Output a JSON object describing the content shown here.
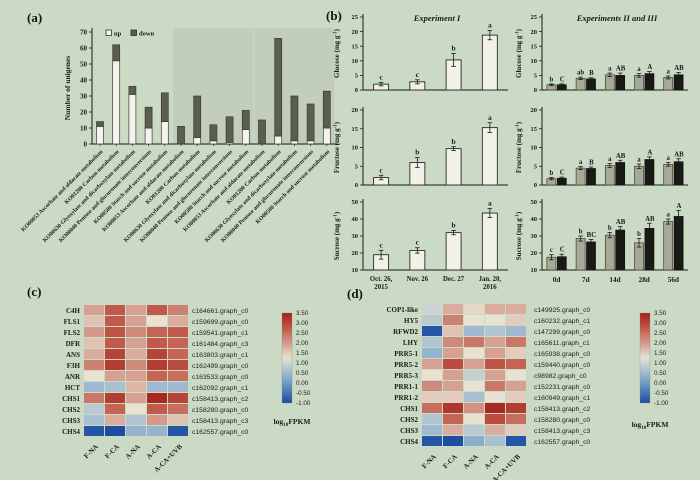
{
  "figure": {
    "panel_labels": {
      "a": "(a)",
      "b": "(b)",
      "c": "(c)",
      "d": "(d)"
    }
  },
  "colors": {
    "background": "#cbdac4",
    "shaded_region": "#c2ceb9",
    "up_bar": "#f4f4ec",
    "down_bar": "#5a5f4c",
    "open_bar": "#f1f1e8",
    "gray_bar": "#a7a997",
    "black_bar": "#191916",
    "heatmap_max_red": "#a2231b",
    "heatmap_mid": "#e7e2d2",
    "heatmap_min_blue": "#1d4da1",
    "text": "#1a1a1a"
  },
  "chart_data": {
    "panel_a": {
      "type": "bar",
      "stacked": true,
      "ylabel": "Number of unigenes",
      "ylim": [
        0,
        70
      ],
      "yticks": [
        0,
        10,
        20,
        30,
        40,
        50,
        60,
        70
      ],
      "legend": [
        "up",
        "down"
      ],
      "categories": [
        "KO00053 Ascorbate and aldarate metabolism",
        "KO01200 Carbon metabolism",
        "KO00630 Glyoxylate and dicarboxylate metabolism",
        "KO00040 Pentose and glucuronate interconversions",
        "KO00500 Starch and sucrose metabolism",
        "KO00053 Ascorbate and aldarate metabolism",
        "KO01200 Carbon metabolism",
        "KO00630 Glyoxylate and dicarboxylate metabolism",
        "KO00040 Pentose and glucuronate interconversions",
        "KO00500 Starch and sucrose metabolism",
        "KO00053 Ascorbate and aldarate metabolism",
        "KO01200 Carbon metabolism",
        "KO00630 Glyoxylate and dicarboxylate metabolism",
        "KO00040 Pentose and glucuronate interconversions",
        "KO00500 Starch and sucrose metabolism"
      ],
      "series": [
        {
          "name": "up",
          "values": [
            11,
            52,
            31,
            10,
            14,
            0,
            4,
            2,
            1,
            9,
            0,
            5,
            2,
            2,
            10
          ]
        },
        {
          "name": "down",
          "values": [
            3,
            10,
            5,
            13,
            18,
            11,
            26,
            10,
            16,
            12,
            15,
            61,
            28,
            23,
            23
          ]
        }
      ],
      "shaded_category_ranges": [
        [
          6,
          10
        ],
        [
          11,
          15
        ]
      ]
    },
    "experiment1": {
      "title": "Experiment I",
      "categories": [
        [
          "Oct. 26,",
          "2015"
        ],
        [
          "Nov. 26"
        ],
        [
          "Dec. 27"
        ],
        [
          "Jan. 20,",
          "2016"
        ]
      ],
      "charts": [
        {
          "type": "bar",
          "ylabel": "Glucose (mg g-1)",
          "ylim": [
            0,
            25
          ],
          "yticks": [
            0,
            5,
            10,
            15,
            20,
            25
          ],
          "values": [
            2.0,
            2.8,
            10.3,
            18.8
          ],
          "errors": [
            0.6,
            0.7,
            2.2,
            1.6
          ],
          "letters": [
            "c",
            "c",
            "b",
            "a"
          ]
        },
        {
          "type": "bar",
          "ylabel": "Fructose (mg g-1)",
          "ylim": [
            0,
            20
          ],
          "yticks": [
            0,
            5,
            10,
            15,
            20
          ],
          "values": [
            2.0,
            6.0,
            9.7,
            15.3
          ],
          "errors": [
            0.6,
            1.3,
            0.5,
            1.3
          ],
          "letters": [
            "c",
            "b",
            "b",
            "a"
          ]
        },
        {
          "type": "bar",
          "ylabel": "Sucrose (mg g-1)",
          "ylim": [
            10,
            50
          ],
          "yticks": [
            10,
            20,
            30,
            40,
            50
          ],
          "values": [
            19.0,
            21.5,
            32.0,
            43.5
          ],
          "errors": [
            2.6,
            1.6,
            1.3,
            2.6
          ],
          "letters": [
            "c",
            "c",
            "b",
            "a"
          ]
        }
      ]
    },
    "experiments_2_3": {
      "title": "Experiments II and III",
      "categories": [
        "0d",
        "7d",
        "14d",
        "28d",
        "56d"
      ],
      "charts": [
        {
          "type": "bar",
          "ylabel": "Glucose (mg g-1)",
          "ylim": [
            0,
            25
          ],
          "yticks": [
            0,
            5,
            10,
            15,
            20,
            25
          ],
          "series": [
            {
              "name": "gray",
              "values": [
                1.8,
                4.0,
                5.2,
                5.0,
                4.3
              ],
              "errors": [
                0.3,
                0.4,
                0.6,
                0.6,
                0.5
              ],
              "letters": [
                "b",
                "ab",
                "a",
                "a",
                "a"
              ]
            },
            {
              "name": "black",
              "values": [
                1.8,
                3.8,
                5.0,
                5.6,
                5.2
              ],
              "errors": [
                0.3,
                0.4,
                0.8,
                0.7,
                0.8
              ],
              "letters": [
                "C",
                "B",
                "AB",
                "A",
                "AB"
              ]
            }
          ]
        },
        {
          "type": "bar",
          "ylabel": "Fructose (mg g-1)",
          "ylim": [
            0,
            20
          ],
          "yticks": [
            0,
            5,
            10,
            15,
            20
          ],
          "series": [
            {
              "name": "gray",
              "values": [
                1.7,
                4.5,
                5.2,
                5.0,
                5.5
              ],
              "errors": [
                0.3,
                0.4,
                0.5,
                0.6,
                0.5
              ],
              "letters": [
                "b",
                "a",
                "a",
                "a",
                "a"
              ]
            },
            {
              "name": "black",
              "values": [
                1.8,
                4.4,
                6.0,
                6.8,
                6.2
              ],
              "errors": [
                0.3,
                0.4,
                0.6,
                0.7,
                0.8
              ],
              "letters": [
                "C",
                "B",
                "AB",
                "A",
                "AB"
              ]
            }
          ]
        },
        {
          "type": "bar",
          "ylabel": "Sucrose (mg g-1)",
          "ylim": [
            10,
            50
          ],
          "yticks": [
            10,
            20,
            30,
            40,
            50
          ],
          "series": [
            {
              "name": "gray",
              "values": [
                17.5,
                28.5,
                30.5,
                26.0,
                38.5
              ],
              "errors": [
                1.5,
                1.5,
                1.5,
                2.5,
                1.5
              ],
              "letters": [
                "c",
                "b",
                "b",
                "b",
                "a"
              ]
            },
            {
              "name": "black",
              "values": [
                17.8,
                26.5,
                33.5,
                34.5,
                41.5
              ],
              "errors": [
                1.5,
                1.5,
                2.0,
                3.0,
                3.5
              ],
              "letters": [
                "C",
                "BC",
                "AB",
                "AB",
                "A"
              ]
            }
          ]
        }
      ]
    },
    "panel_c": {
      "type": "heatmap",
      "columns": [
        "F-NA",
        "F-CA",
        "A-NA",
        "A-CA",
        "A-CA+UVB"
      ],
      "rows": [
        {
          "gene": "C4H",
          "id": "c164661.graph_c0",
          "values": [
            1.9,
            2.7,
            1.9,
            2.7,
            2.3
          ]
        },
        {
          "gene": "FLS1",
          "id": "c159699.graph_c0",
          "values": [
            1.6,
            2.7,
            1.9,
            1.3,
            1.8
          ]
        },
        {
          "gene": "FLS2",
          "id": "c159541.graph_c1",
          "values": [
            2.0,
            2.8,
            2.2,
            2.6,
            2.7
          ]
        },
        {
          "gene": "DFR",
          "id": "c161484.graph_c3",
          "values": [
            1.6,
            2.7,
            1.9,
            2.7,
            2.6
          ]
        },
        {
          "gene": "ANS",
          "id": "c163803.graph_c1",
          "values": [
            1.8,
            3.0,
            1.8,
            3.0,
            2.6
          ]
        },
        {
          "gene": "F3H",
          "id": "c162499.graph_c0",
          "values": [
            2.3,
            3.1,
            2.2,
            3.1,
            2.9
          ]
        },
        {
          "gene": "ANR",
          "id": "c163533.graph_c0",
          "values": [
            1.3,
            1.9,
            1.9,
            2.6,
            2.5
          ]
        },
        {
          "gene": "HCT",
          "id": "c162092.graph_c1",
          "values": [
            0.5,
            0.6,
            1.7,
            0.5,
            0.5
          ]
        },
        {
          "gene": "CHS1",
          "id": "c158413.graph_c2",
          "values": [
            2.4,
            3.1,
            1.9,
            3.4,
            3.0
          ]
        },
        {
          "gene": "CHS2",
          "id": "c158280.graph_c0",
          "values": [
            0.8,
            2.6,
            1.3,
            2.7,
            2.5
          ]
        },
        {
          "gene": "CHS3",
          "id": "c158413.graph_c3",
          "values": [
            0.6,
            1.8,
            0.7,
            2.0,
            1.6
          ]
        },
        {
          "gene": "CHS4",
          "id": "c162557.graph_c0",
          "values": [
            -0.9,
            -1.0,
            0.4,
            0.4,
            -0.9
          ]
        }
      ],
      "scale": {
        "ticks": [
          "3.50",
          "3.00",
          "2.50",
          "2.00",
          "1.50",
          "1.00",
          "0.50",
          "0.00",
          "-0.50",
          "-1.00"
        ],
        "label": "log10FPKM",
        "min": -1.0,
        "max": 3.5
      }
    },
    "panel_d": {
      "type": "heatmap",
      "columns": [
        "F-NA",
        "F-CA",
        "A-NA",
        "A-CA",
        "A-CA+UVB"
      ],
      "rows": [
        {
          "gene": "COP1-like",
          "id": "c149925.graph_c0",
          "values": [
            1.0,
            1.8,
            1.4,
            1.8,
            1.8
          ]
        },
        {
          "gene": "HY5",
          "id": "c160232.graph_c1",
          "values": [
            0.8,
            2.3,
            1.3,
            1.3,
            1.5
          ]
        },
        {
          "gene": "RFWD2",
          "id": "c147299.graph_c0",
          "values": [
            -0.9,
            1.6,
            0.5,
            0.7,
            0.5
          ]
        },
        {
          "gene": "LHY",
          "id": "c165611.graph_c1",
          "values": [
            0.7,
            2.2,
            2.4,
            1.9,
            2.4
          ]
        },
        {
          "gene": "PRR5-1",
          "id": "c165938.graph_c0",
          "values": [
            0.4,
            1.9,
            1.3,
            1.9,
            1.5
          ]
        },
        {
          "gene": "PRR5-2",
          "id": "c159440.graph_c0",
          "values": [
            1.9,
            2.9,
            1.9,
            2.8,
            2.6
          ]
        },
        {
          "gene": "PRR5-3",
          "id": "c98982.graph_c0",
          "values": [
            1.3,
            1.9,
            0.9,
            1.9,
            1.3
          ]
        },
        {
          "gene": "PRR1-1",
          "id": "c152231.graph_c0",
          "values": [
            2.2,
            1.9,
            1.3,
            2.4,
            1.9
          ]
        },
        {
          "gene": "PRR1-2",
          "id": "c160949.graph_c1",
          "values": [
            1.5,
            1.5,
            0.6,
            1.3,
            1.5
          ]
        },
        {
          "gene": "CHS1",
          "id": "c158413.graph_c2",
          "values": [
            2.5,
            3.2,
            2.1,
            3.4,
            3.1
          ]
        },
        {
          "gene": "CHS2",
          "id": "c158280.graph_c0",
          "values": [
            0.7,
            2.6,
            1.3,
            2.9,
            2.5
          ]
        },
        {
          "gene": "CHS3",
          "id": "c158413.graph_c3",
          "values": [
            0.5,
            1.8,
            0.8,
            1.8,
            1.5
          ]
        },
        {
          "gene": "CHS4",
          "id": "c162557.graph_c0",
          "values": [
            -0.9,
            -1.0,
            0.3,
            0.6,
            -0.9
          ]
        }
      ],
      "scale": {
        "ticks": [
          "3.50",
          "3.00",
          "2.50",
          "2.00",
          "1.50",
          "1.00",
          "0.50",
          "0.00",
          "-0.50",
          "-1.00"
        ],
        "label": "log10FPKM",
        "min": -1.0,
        "max": 3.5
      }
    }
  }
}
